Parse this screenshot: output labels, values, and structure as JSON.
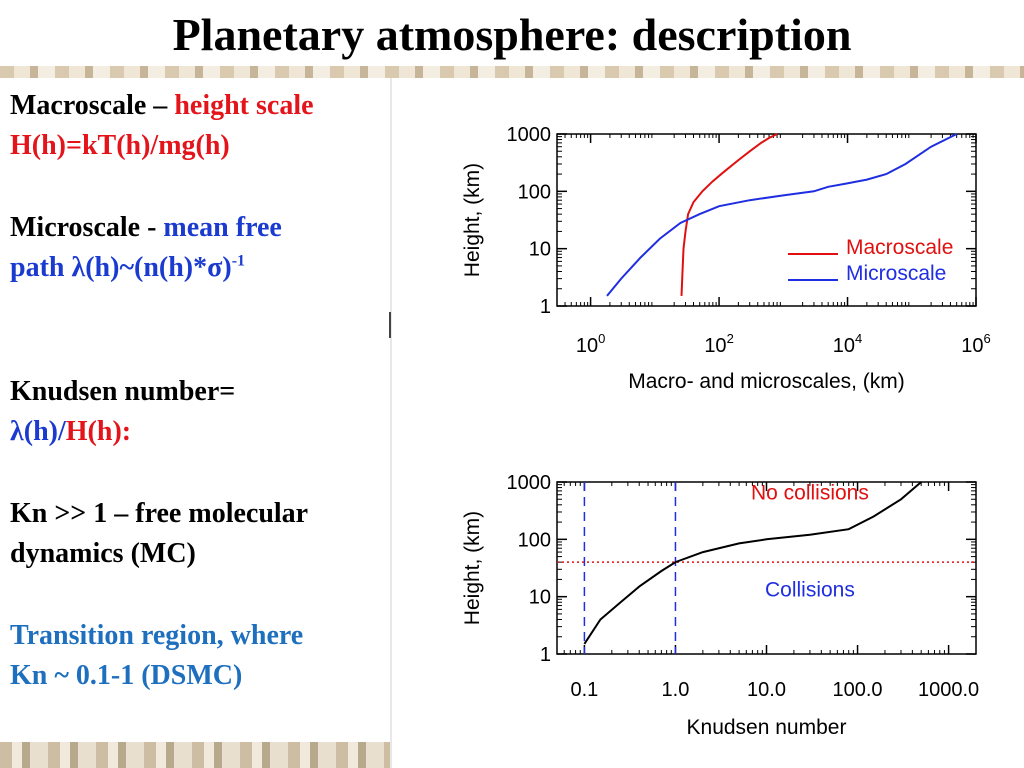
{
  "title": "Planetary atmosphere: description",
  "left": {
    "macro_label": "Macroscale –",
    "macro_highlight": "height scale",
    "macro_formula": "H(h)=kT(h)/mg(h)",
    "micro_label": "Microscale -",
    "micro_highlight": "mean free",
    "micro_formula": "path λ(h)~(n(h)*σ)",
    "micro_formula_sup": "-1",
    "knudsen_label": "Knudsen number=",
    "knudsen_lambda": "λ(h)/",
    "knudsen_H": "H(h):",
    "kn_line1": "Kn >> 1 – free molecular",
    "kn_line2": "dynamics  (MC)",
    "transition_line1": "Transition region, where",
    "transition_line2": "Kn ~ 0.1-1  (DSMC)"
  },
  "colors": {
    "red": "#e4141b",
    "blue": "#1b3bd0",
    "transition": "#1f6fbf",
    "macro_line": "#e01010",
    "micro_line": "#1f2ee0"
  },
  "chart_data": [
    {
      "type": "line",
      "xlabel": "Macro- and microscales, (km)",
      "ylabel": "Height, (km)",
      "x_scale": "log",
      "y_scale": "log",
      "xlim": [
        0.3,
        1000000
      ],
      "ylim": [
        1,
        1000
      ],
      "x_ticks": [
        {
          "v": 1,
          "b": "10",
          "e": "0"
        },
        {
          "v": 100,
          "b": "10",
          "e": "2"
        },
        {
          "v": 10000,
          "b": "10",
          "e": "4"
        },
        {
          "v": 1000000,
          "b": "10",
          "e": "6"
        }
      ],
      "y_ticks": [
        {
          "v": 1,
          "label": "1"
        },
        {
          "v": 10,
          "label": "10"
        },
        {
          "v": 100,
          "label": "100"
        },
        {
          "v": 1000,
          "label": "1000"
        }
      ],
      "series": [
        {
          "name": "Macroscale",
          "color": "#e01010",
          "x": [
            26,
            27,
            28,
            30,
            33,
            40,
            55,
            80,
            120,
            200,
            300,
            450,
            600,
            800
          ],
          "y": [
            1.5,
            4,
            10,
            20,
            40,
            65,
            100,
            150,
            220,
            350,
            500,
            700,
            850,
            1000
          ]
        },
        {
          "name": "Microscale",
          "color": "#1f2ee0",
          "x": [
            1.8,
            3,
            6,
            12,
            25,
            50,
            100,
            300,
            1000,
            3000,
            5000,
            9000,
            20000,
            40000,
            80000,
            200000,
            500000
          ],
          "y": [
            1.5,
            3,
            7,
            15,
            28,
            40,
            55,
            70,
            85,
            100,
            120,
            135,
            160,
            200,
            300,
            600,
            1000
          ]
        }
      ]
    },
    {
      "type": "line",
      "xlabel": "Knudsen number",
      "ylabel": "Height, (km)",
      "x_scale": "log",
      "y_scale": "log",
      "xlim": [
        0.05,
        2000
      ],
      "ylim": [
        1,
        1000
      ],
      "x_ticks": [
        {
          "v": 0.1,
          "label": "0.1"
        },
        {
          "v": 1,
          "label": "1.0"
        },
        {
          "v": 10,
          "label": "10.0"
        },
        {
          "v": 100,
          "label": "100.0"
        },
        {
          "v": 1000,
          "label": "1000.0"
        }
      ],
      "y_ticks": [
        {
          "v": 1,
          "label": "1"
        },
        {
          "v": 10,
          "label": "10"
        },
        {
          "v": 100,
          "label": "100"
        },
        {
          "v": 1000,
          "label": "1000"
        }
      ],
      "vlines": [
        0.1,
        1
      ],
      "hline": 40,
      "annotations": [
        {
          "text": "No collisions",
          "x": 30,
          "y": 500,
          "color": "#e01010"
        },
        {
          "text": "Collisions",
          "x": 30,
          "y": 10,
          "color": "#1f2ee0"
        }
      ],
      "series": [
        {
          "color": "#000000",
          "x": [
            0.1,
            0.15,
            0.25,
            0.4,
            0.7,
            1,
            2,
            5,
            10,
            30,
            80,
            150,
            300,
            500
          ],
          "y": [
            1.5,
            4,
            8,
            15,
            28,
            40,
            60,
            85,
            100,
            120,
            150,
            250,
            500,
            1000
          ]
        }
      ]
    }
  ]
}
